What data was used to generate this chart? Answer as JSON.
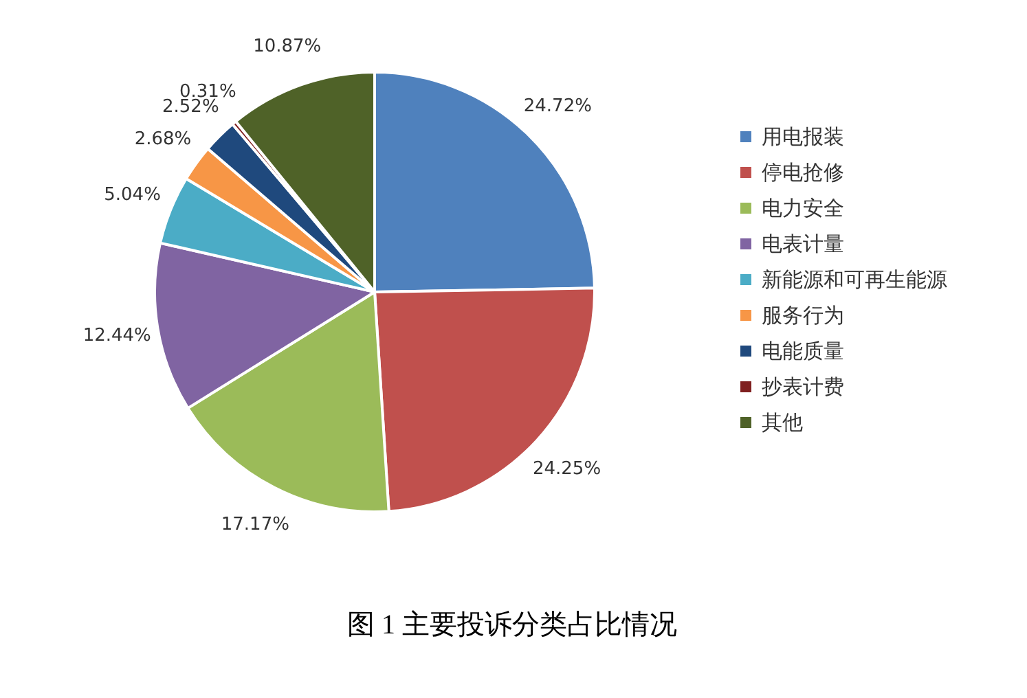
{
  "chart_data": {
    "type": "pie",
    "title": "图 1 主要投诉分类占比情况",
    "categories": [
      "用电报装",
      "停电抢修",
      "电力安全",
      "电表计量",
      "新能源和可再生能源",
      "服务行为",
      "电能质量",
      "抄表计费",
      "其他"
    ],
    "values": [
      24.72,
      24.25,
      17.17,
      12.44,
      5.04,
      2.68,
      2.52,
      0.31,
      10.87
    ],
    "value_labels": [
      "24.72%",
      "24.25%",
      "17.17%",
      "12.44%",
      "5.04%",
      "2.68%",
      "2.52%",
      "0.31%",
      "10.87%"
    ],
    "colors": [
      "#4f81bd",
      "#c0504d",
      "#9bbb59",
      "#8064a2",
      "#4bacc6",
      "#f79646",
      "#1f497d",
      "#7f1f1f",
      "#4f6228"
    ],
    "legend": "right"
  }
}
